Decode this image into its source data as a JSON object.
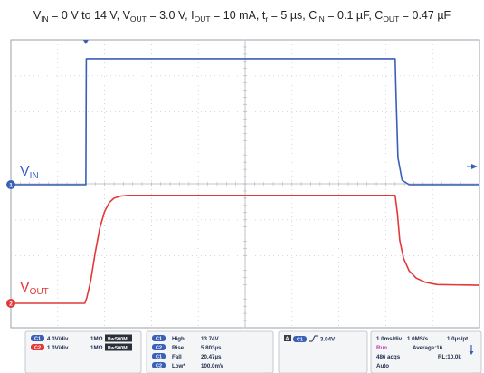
{
  "caption": {
    "parts": [
      {
        "t": "V",
        "sub": "IN"
      },
      {
        "t": " = 0 V to 14 V, V",
        "sub": "OUT"
      },
      {
        "t": " = 3.0 V, I",
        "sub": "OUT"
      },
      {
        "t": " = 10 mA, t",
        "sub": "r"
      },
      {
        "t": " = 5 µs, C",
        "sub": "IN"
      },
      {
        "t": " = 0.1 µF, C",
        "sub": "OUT"
      },
      {
        "t": " = 0.47 µF",
        "sub": ""
      }
    ]
  },
  "chart_data": {
    "type": "line",
    "time_div": "1.0ms/div",
    "x_unit": "ms",
    "xlim": [
      0,
      10
    ],
    "grid": true,
    "series": [
      {
        "name": "VIN",
        "name_main": "V",
        "name_sub": "IN",
        "color": "#3a5fb8",
        "channel": "C1",
        "volts_per_div": 4.0,
        "ylim_divs": [
          -2,
          2
        ],
        "points": [
          [
            0,
            0
          ],
          [
            1.6,
            0
          ],
          [
            1.61,
            14
          ],
          [
            8.2,
            14
          ],
          [
            8.22,
            10
          ],
          [
            8.26,
            3
          ],
          [
            8.35,
            0.5
          ],
          [
            8.5,
            0
          ],
          [
            10,
            0
          ]
        ]
      },
      {
        "name": "VOUT",
        "name_main": "V",
        "name_sub": "OUT",
        "color": "#e23838",
        "channel": "C2",
        "volts_per_div": 1.0,
        "ylim_divs": [
          -2,
          2
        ],
        "points": [
          [
            0,
            0
          ],
          [
            1.58,
            0
          ],
          [
            1.62,
            0.15
          ],
          [
            1.7,
            0.6
          ],
          [
            1.8,
            1.4
          ],
          [
            1.9,
            2.1
          ],
          [
            2.0,
            2.55
          ],
          [
            2.1,
            2.8
          ],
          [
            2.2,
            2.92
          ],
          [
            2.35,
            2.98
          ],
          [
            2.5,
            3.0
          ],
          [
            8.2,
            3.0
          ],
          [
            8.25,
            2.5
          ],
          [
            8.3,
            1.75
          ],
          [
            8.38,
            1.25
          ],
          [
            8.5,
            0.9
          ],
          [
            8.65,
            0.7
          ],
          [
            8.85,
            0.58
          ],
          [
            9.1,
            0.52
          ],
          [
            10,
            0.5
          ]
        ]
      }
    ]
  },
  "panel": {
    "channels": [
      {
        "badge": "C1",
        "color": "#3a5fb8",
        "scale": "4.0V/div",
        "imp": "1MΩ",
        "bw": "500M"
      },
      {
        "badge": "C2",
        "color": "#e23838",
        "scale": "1.0V/div",
        "imp": "1MΩ",
        "bw": "500M"
      }
    ],
    "measurements": [
      {
        "badge": "C1",
        "color": "#3a5fb8",
        "label": "High",
        "value": "13.74V"
      },
      {
        "badge": "C2",
        "color": "#3a5fb8",
        "label": "Rise",
        "value": "5.803µs"
      },
      {
        "badge": "C1",
        "color": "#3a5fb8",
        "label": "Fall",
        "value": "20.47µs"
      },
      {
        "badge": "C2",
        "color": "#3a5fb8",
        "label": "Low*",
        "value": "100.0mV"
      }
    ],
    "trigger": {
      "badge_a": "A",
      "badge_ch": "C1",
      "level": "3.04V"
    },
    "acq": {
      "line1a": "1.0ms/div",
      "line1b": "1.0MS/s",
      "line1c": "1.0µs/pt",
      "run": "Run",
      "average": "Average:16",
      "acqs": "486 acqs",
      "rl": "RL:10.0k",
      "auto": "Auto"
    }
  }
}
